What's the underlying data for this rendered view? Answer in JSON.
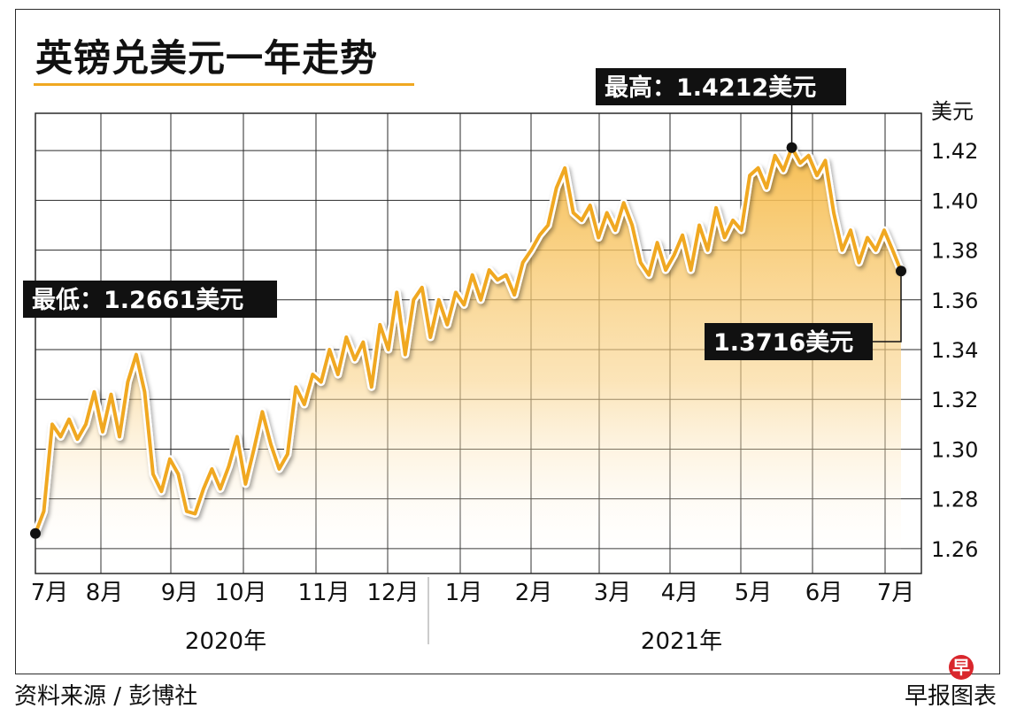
{
  "title": "英镑兑美元一年走势",
  "source": "资料来源 / 彭博社",
  "brand": "早报图表",
  "brand_logo": "早",
  "colors": {
    "line": "#f0a821",
    "fill_top": "#f6bb4a",
    "grid": "#2a2a2a",
    "callout_bg": "#111111",
    "title_underline": "#f0a821"
  },
  "chart_data": {
    "type": "line",
    "title": "英镑兑美元一年走势",
    "ylabel": "美元",
    "ylim": [
      1.25,
      1.435
    ],
    "yticks": [
      "1.26",
      "1.28",
      "1.30",
      "1.32",
      "1.34",
      "1.36",
      "1.38",
      "1.40",
      "1.42"
    ],
    "months": [
      "7月",
      "8月",
      "9月",
      "10月",
      "11月",
      "12月",
      "1月",
      "2月",
      "3月",
      "4月",
      "5月",
      "6月",
      "7月"
    ],
    "years": [
      "2020年",
      "2021年"
    ],
    "grid": true,
    "callouts": {
      "low": "最低：1.2661美元",
      "high": "最高：1.4212美元",
      "last": "1.3716美元"
    },
    "series": [
      {
        "values": [
          1.2661,
          1.275,
          1.31,
          1.305,
          1.312,
          1.304,
          1.31,
          1.323,
          1.307,
          1.322,
          1.305,
          1.327,
          1.338,
          1.323,
          1.29,
          1.283,
          1.296,
          1.29,
          1.275,
          1.274,
          1.284,
          1.292,
          1.284,
          1.293,
          1.305,
          1.286,
          1.3,
          1.315,
          1.302,
          1.292,
          1.298,
          1.325,
          1.318,
          1.33,
          1.327,
          1.34,
          1.33,
          1.345,
          1.336,
          1.343,
          1.325,
          1.35,
          1.34,
          1.363,
          1.338,
          1.36,
          1.365,
          1.345,
          1.36,
          1.35,
          1.363,
          1.358,
          1.37,
          1.36,
          1.372,
          1.368,
          1.37,
          1.362,
          1.375,
          1.38,
          1.386,
          1.39,
          1.405,
          1.413,
          1.395,
          1.392,
          1.398,
          1.385,
          1.395,
          1.388,
          1.399,
          1.39,
          1.375,
          1.37,
          1.383,
          1.372,
          1.378,
          1.386,
          1.372,
          1.39,
          1.38,
          1.397,
          1.385,
          1.392,
          1.388,
          1.41,
          1.413,
          1.405,
          1.418,
          1.412,
          1.4212,
          1.415,
          1.418,
          1.41,
          1.416,
          1.395,
          1.38,
          1.388,
          1.375,
          1.385,
          1.38,
          1.388,
          1.38,
          1.3716
        ]
      }
    ]
  }
}
